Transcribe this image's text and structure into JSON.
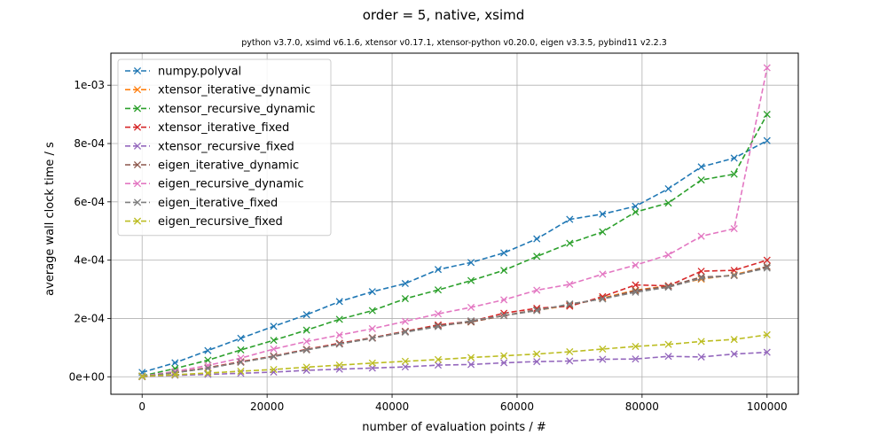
{
  "chart_data": {
    "type": "line",
    "title": "order = 5, native, xsimd",
    "subtitle": "python v3.7.0, xsimd v6.1.6, xtensor v0.17.1, xtensor-python v0.20.0, eigen v3.3.5, pybind11 v2.2.3",
    "xlabel": "number of evaluation points / #",
    "ylabel": "average wall clock time / s",
    "xlim": [
      -5000,
      105000
    ],
    "ylim": [
      -6e-05,
      0.00111
    ],
    "x_ticks": [
      0,
      20000,
      40000,
      60000,
      80000,
      100000
    ],
    "x_tick_labels": [
      "0",
      "20000",
      "40000",
      "60000",
      "80000",
      "100000"
    ],
    "y_ticks": [
      0,
      0.0002,
      0.0004,
      0.0006,
      0.0008,
      0.001
    ],
    "y_tick_labels": [
      "0e+00",
      "2e-04",
      "4e-04",
      "6e-04",
      "8e-04",
      "1e-03"
    ],
    "grid": true,
    "legend_position": "top-left",
    "marker": "x",
    "line_style": "dashed",
    "x": [
      0,
      5263,
      10526,
      15789,
      21052,
      26315,
      31578,
      36842,
      42105,
      47368,
      52631,
      57894,
      63157,
      68421,
      73684,
      78947,
      84210,
      89473,
      94736,
      100000
    ],
    "series": [
      {
        "name": "numpy.polyval",
        "color": "#1f77b4",
        "values": [
          1.5e-05,
          4.8e-05,
          9e-05,
          0.000132,
          0.000173,
          0.000213,
          0.000258,
          0.000292,
          0.00032,
          0.000368,
          0.000392,
          0.000425,
          0.000473,
          0.00054,
          0.000558,
          0.000585,
          0.000645,
          0.00072,
          0.00075,
          0.00081
        ]
      },
      {
        "name": "xtensor_iterative_dynamic",
        "color": "#ff7f0e",
        "values": [
          1e-06,
          1.5e-05,
          3e-05,
          5e-05,
          7e-05,
          9.3e-05,
          0.000113,
          0.000133,
          0.000155,
          0.000175,
          0.000188,
          0.00021,
          0.000228,
          0.000245,
          0.00027,
          0.000297,
          0.000312,
          0.000335,
          0.00035,
          0.000378
        ]
      },
      {
        "name": "xtensor_recursive_dynamic",
        "color": "#2ca02c",
        "values": [
          3e-06,
          2.8e-05,
          5.7e-05,
          9.2e-05,
          0.000125,
          0.00016,
          0.000197,
          0.000227,
          0.000268,
          0.000298,
          0.00033,
          0.000365,
          0.000413,
          0.000458,
          0.000497,
          0.000565,
          0.000596,
          0.000675,
          0.000695,
          0.0009
        ]
      },
      {
        "name": "xtensor_iterative_fixed",
        "color": "#d62728",
        "values": [
          1e-06,
          1.4e-05,
          3.1e-05,
          5.2e-05,
          7.1e-05,
          9.4e-05,
          0.000115,
          0.000134,
          0.000156,
          0.000178,
          0.00019,
          0.000218,
          0.000235,
          0.000242,
          0.000275,
          0.000315,
          0.000312,
          0.000362,
          0.000365,
          0.0004
        ]
      },
      {
        "name": "xtensor_recursive_fixed",
        "color": "#9467bd",
        "values": [
          0.0,
          5e-06,
          8e-06,
          1.2e-05,
          1.6e-05,
          2.2e-05,
          2.6e-05,
          3e-05,
          3.4e-05,
          4e-05,
          4.2e-05,
          4.8e-05,
          5.2e-05,
          5.4e-05,
          6e-05,
          6.1e-05,
          7e-05,
          6.8e-05,
          7.8e-05,
          8.4e-05
        ]
      },
      {
        "name": "eigen_iterative_dynamic",
        "color": "#8c564b",
        "values": [
          1e-06,
          1.4e-05,
          3e-05,
          5e-05,
          7e-05,
          9.3e-05,
          0.000113,
          0.000133,
          0.000155,
          0.000175,
          0.000188,
          0.00021,
          0.00023,
          0.000247,
          0.000268,
          0.000295,
          0.00031,
          0.000342,
          0.000347,
          0.000378
        ]
      },
      {
        "name": "eigen_recursive_dynamic",
        "color": "#e377c2",
        "values": [
          2e-06,
          1.8e-05,
          3.9e-05,
          6.4e-05,
          9.5e-05,
          0.000121,
          0.000143,
          0.000165,
          0.00019,
          0.000216,
          0.000238,
          0.000264,
          0.000297,
          0.000317,
          0.000352,
          0.000383,
          0.000418,
          0.000482,
          0.000508,
          0.00106
        ]
      },
      {
        "name": "eigen_iterative_fixed",
        "color": "#7f7f7f",
        "values": [
          1e-06,
          1.4e-05,
          2.9e-05,
          5e-05,
          6.9e-05,
          9.2e-05,
          0.000112,
          0.000132,
          0.000153,
          0.000172,
          0.000192,
          0.00021,
          0.000227,
          0.00025,
          0.000267,
          0.00029,
          0.000307,
          0.000338,
          0.000348,
          0.000373
        ]
      },
      {
        "name": "eigen_recursive_fixed",
        "color": "#bcbd22",
        "values": [
          1e-06,
          7e-06,
          1.3e-05,
          1.9e-05,
          2.5e-05,
          3.3e-05,
          4e-05,
          4.7e-05,
          5.3e-05,
          5.9e-05,
          6.6e-05,
          7.2e-05,
          7.8e-05,
          8.6e-05,
          9.5e-05,
          0.000104,
          0.000111,
          0.000121,
          0.000128,
          0.000144
        ]
      }
    ]
  }
}
